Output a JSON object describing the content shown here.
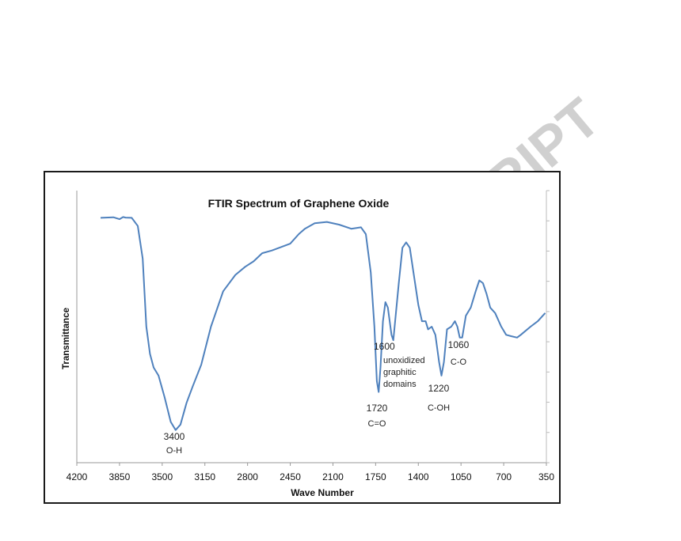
{
  "watermark": "ACCEPTED MANUSCRIPT",
  "chart_data": {
    "type": "line",
    "title": "FTIR Spectrum of Graphene Oxide",
    "xlabel": "Wave Number",
    "ylabel": "Transmittance",
    "xlim": [
      4200,
      350
    ],
    "x_reversed": true,
    "ylim": [
      0,
      100
    ],
    "y_tick_labels_shown": false,
    "x_ticks": [
      4200,
      3850,
      3500,
      3150,
      2800,
      2450,
      2100,
      1750,
      1400,
      1050,
      700,
      350
    ],
    "grid": false,
    "line_color": "#4f81bd",
    "series": [
      {
        "x": [
          4005,
          3900,
          3850,
          3820,
          3800,
          3750,
          3700,
          3660,
          3630,
          3600,
          3570,
          3530,
          3480,
          3430,
          3390,
          3350,
          3300,
          3250,
          3180,
          3100,
          3000,
          2900,
          2820,
          2750,
          2680,
          2600,
          2450,
          2380,
          2330,
          2250,
          2150,
          2050,
          1950,
          1870,
          1830,
          1790,
          1760,
          1740,
          1725,
          1710,
          1690,
          1670,
          1650,
          1620,
          1605,
          1590,
          1560,
          1530,
          1500,
          1470,
          1440,
          1400,
          1370,
          1340,
          1320,
          1290,
          1260,
          1230,
          1210,
          1190,
          1165,
          1130,
          1100,
          1080,
          1060,
          1040,
          1010,
          970,
          930,
          900,
          870,
          840,
          810,
          770,
          720,
          680,
          640,
          590,
          560,
          480,
          420,
          380,
          360
        ],
        "y": [
          90,
          90.2,
          89.5,
          90.3,
          90.1,
          90,
          87,
          75,
          50,
          40,
          35,
          32,
          24,
          15,
          12,
          14,
          22,
          28,
          36,
          50,
          63,
          69,
          72,
          74,
          77,
          78,
          80.5,
          84,
          86,
          88,
          88.5,
          87.5,
          86,
          86.5,
          84,
          70,
          50,
          30,
          26,
          35,
          52,
          59,
          57,
          47,
          45,
          52,
          66,
          79,
          81,
          79,
          70,
          58,
          52,
          52,
          49,
          50,
          47,
          37,
          32,
          37,
          49,
          50,
          52,
          50,
          46,
          46,
          54,
          57,
          63,
          67,
          66,
          62,
          57,
          55,
          50,
          47,
          46.5,
          46,
          47,
          50,
          52,
          54,
          55
        ]
      }
    ],
    "annotations": [
      {
        "id": "oh",
        "lines": [
          "3400",
          "O-H"
        ]
      },
      {
        "id": "co_double",
        "lines": [
          "1720",
          "C=O"
        ]
      },
      {
        "id": "graphitic",
        "lines": [
          "1600",
          "unoxidized",
          "graphitic",
          "domains"
        ]
      },
      {
        "id": "coh",
        "lines": [
          "1220",
          "C-OH"
        ]
      },
      {
        "id": "co",
        "lines": [
          "1060",
          "C-O"
        ]
      }
    ]
  }
}
